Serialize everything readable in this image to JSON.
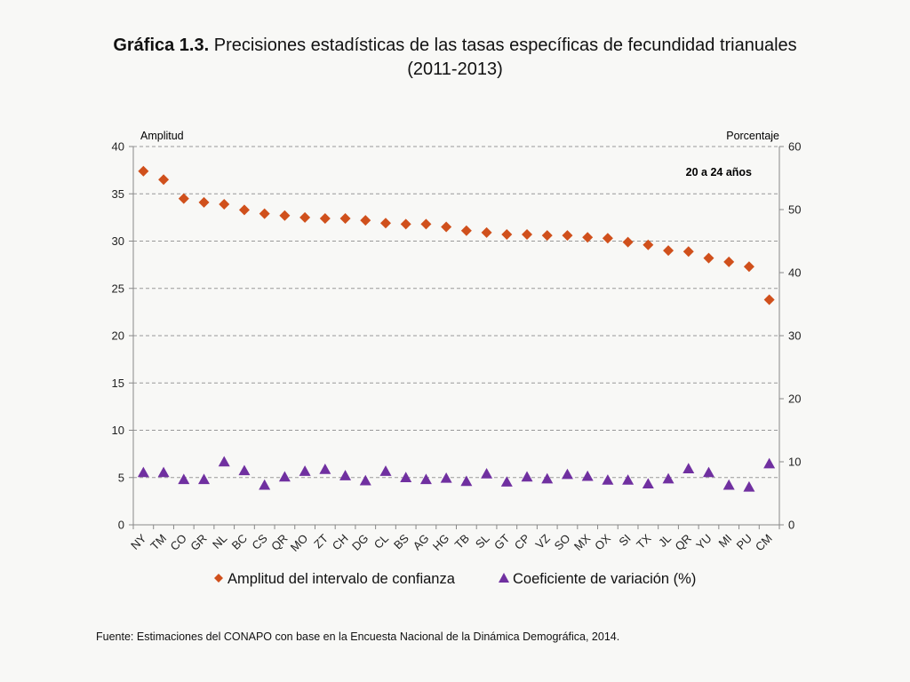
{
  "title": {
    "bold": "Gráfica 1.3.",
    "line1": " Precisiones estadísticas de las tasas específicas de fecundidad trianuales",
    "line2": "(2011-2013)"
  },
  "source": "Fuente: Estimaciones del CONAPO con base en la Encuesta Nacional de la Dinámica Demográfica, 2014.",
  "colors": {
    "series1": "#d0501c",
    "series2": "#7030a0",
    "grid": "#999999"
  },
  "chart_data": {
    "type": "scatter",
    "annotation": "20 a 24 años",
    "categories": [
      "NY",
      "TM",
      "CO",
      "GR",
      "NL",
      "BC",
      "CS",
      "QR",
      "MO",
      "ZT",
      "CH",
      "DG",
      "CL",
      "BS",
      "AG",
      "HG",
      "TB",
      "SL",
      "GT",
      "CP",
      "VZ",
      "SO",
      "MX",
      "OX",
      "SI",
      "TX",
      "JL",
      "QR",
      "YU",
      "MI",
      "PU",
      "CM"
    ],
    "y_left": {
      "label": "Amplitud",
      "range": [
        0,
        40
      ],
      "ticks": [
        0,
        5,
        10,
        15,
        20,
        25,
        30,
        35,
        40
      ]
    },
    "y_right": {
      "label": "Porcentaje",
      "range": [
        0,
        60
      ],
      "ticks": [
        0,
        10,
        20,
        30,
        40,
        50,
        60
      ]
    },
    "grid": true,
    "legend_position": "bottom",
    "series": [
      {
        "name": "Amplitud del intervalo de confianza",
        "axis": "left",
        "marker": "diamond",
        "values": [
          37.4,
          36.5,
          34.5,
          34.1,
          33.9,
          33.3,
          32.9,
          32.7,
          32.5,
          32.4,
          32.4,
          32.2,
          31.9,
          31.8,
          31.8,
          31.5,
          31.1,
          30.9,
          30.7,
          30.7,
          30.6,
          30.6,
          30.4,
          30.3,
          29.9,
          29.6,
          29.0,
          28.9,
          28.2,
          27.8,
          27.3,
          23.8
        ]
      },
      {
        "name": "Coeficiente de variación (%)",
        "axis": "right",
        "marker": "triangle",
        "values": [
          8.3,
          8.3,
          7.2,
          7.2,
          10.0,
          8.6,
          6.3,
          7.6,
          8.5,
          8.8,
          7.8,
          7.0,
          8.5,
          7.5,
          7.2,
          7.4,
          6.9,
          8.1,
          6.8,
          7.6,
          7.3,
          8.0,
          7.7,
          7.1,
          7.1,
          6.5,
          7.3,
          8.9,
          8.3,
          6.3,
          6.0,
          9.7
        ]
      }
    ]
  }
}
